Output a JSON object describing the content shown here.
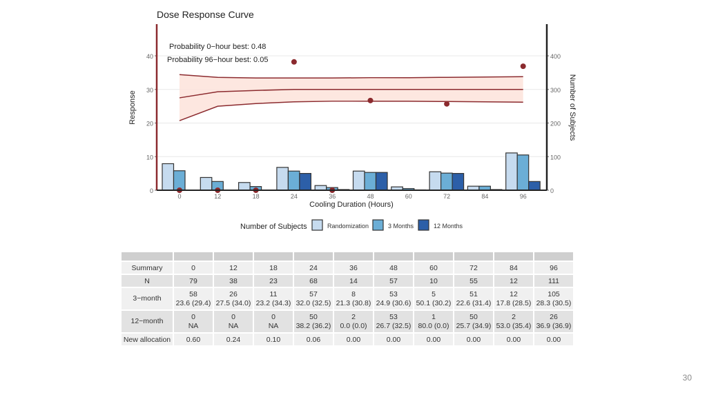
{
  "page_number": "30",
  "chart_data": {
    "type": "bar",
    "title": "Dose Response Curve",
    "xlabel": "Cooling Duration (Hours)",
    "ylabel": "Response",
    "y2label": "Number of Subjects",
    "categories": [
      "0",
      "12",
      "18",
      "24",
      "36",
      "48",
      "60",
      "72",
      "84",
      "96"
    ],
    "ylim": [
      0,
      50
    ],
    "yticks": [
      0,
      10,
      20,
      30,
      40
    ],
    "y2lim": [
      0,
      500
    ],
    "y2ticks": [
      0,
      100,
      200,
      300,
      400
    ],
    "grid": true,
    "annotations": [
      "Probability 0−hour best: 0.48",
      "Probability 96−hour best: 0.05"
    ],
    "legend": {
      "title": "Number of Subjects",
      "placement": "bottom",
      "entries": [
        "Randomization",
        "3 Months",
        "12 Months"
      ]
    },
    "colors": {
      "Randomization": "#c6dbef",
      "3 Months": "#6baed6",
      "12 Months": "#2c5fa8",
      "curve": "#8b2a2e",
      "band": "#fde3da",
      "points": "#8b2a2e",
      "left_axis": "#8b2a2e"
    },
    "series": [
      {
        "name": "Randomization",
        "axis": "y2",
        "values": [
          79,
          38,
          23,
          68,
          14,
          57,
          10,
          55,
          12,
          111
        ]
      },
      {
        "name": "3 Months",
        "axis": "y2",
        "values": [
          58,
          26,
          11,
          57,
          8,
          53,
          5,
          51,
          12,
          105
        ]
      },
      {
        "name": "12 Months",
        "axis": "y2",
        "values": [
          0,
          0,
          0,
          50,
          2,
          53,
          1,
          50,
          2,
          26
        ]
      }
    ],
    "curve": {
      "median": [
        27.5,
        29.3,
        29.7,
        30.0,
        30.0,
        30.0,
        30.0,
        30.0,
        30.0,
        30.0
      ],
      "upper": [
        34.4,
        33.6,
        33.4,
        33.4,
        33.4,
        33.5,
        33.5,
        33.6,
        33.7,
        33.8
      ],
      "lower": [
        20.7,
        25.0,
        25.8,
        26.3,
        26.5,
        26.5,
        26.5,
        26.4,
        26.3,
        26.2
      ]
    },
    "points": [
      {
        "x": "0",
        "y": 0
      },
      {
        "x": "12",
        "y": 0
      },
      {
        "x": "18",
        "y": 0
      },
      {
        "x": "24",
        "y": 38.2
      },
      {
        "x": "36",
        "y": 0
      },
      {
        "x": "48",
        "y": 26.7
      },
      {
        "x": "72",
        "y": 25.7
      },
      {
        "x": "96",
        "y": 36.9
      }
    ]
  },
  "table": {
    "rows": [
      {
        "label": "Summary",
        "cells": [
          "0",
          "12",
          "18",
          "24",
          "36",
          "48",
          "60",
          "72",
          "84",
          "96"
        ]
      },
      {
        "label": "N",
        "cells": [
          "79",
          "38",
          "23",
          "68",
          "14",
          "57",
          "10",
          "55",
          "12",
          "111"
        ]
      },
      {
        "label": "3−month",
        "cells": [
          [
            "58",
            "23.6 (29.4)"
          ],
          [
            "26",
            "27.5 (34.0)"
          ],
          [
            "11",
            "23.2 (34.3)"
          ],
          [
            "57",
            "32.0 (32.5)"
          ],
          [
            "8",
            "21.3 (30.8)"
          ],
          [
            "53",
            "24.9 (30.6)"
          ],
          [
            "5",
            "50.1 (30.2)"
          ],
          [
            "51",
            "22.6 (31.4)"
          ],
          [
            "12",
            "17.8 (28.5)"
          ],
          [
            "105",
            "28.3 (30.5)"
          ]
        ]
      },
      {
        "label": "12−month",
        "cells": [
          [
            "0",
            "NA"
          ],
          [
            "0",
            "NA"
          ],
          [
            "0",
            "NA"
          ],
          [
            "50",
            "38.2 (36.2)"
          ],
          [
            "2",
            "0.0 (0.0)"
          ],
          [
            "53",
            "26.7 (32.5)"
          ],
          [
            "1",
            "80.0 (0.0)"
          ],
          [
            "50",
            "25.7 (34.9)"
          ],
          [
            "2",
            "53.0 (35.4)"
          ],
          [
            "26",
            "36.9 (36.9)"
          ]
        ]
      },
      {
        "label": "New allocation",
        "cells": [
          "0.60",
          "0.24",
          "0.10",
          "0.06",
          "0.00",
          "0.00",
          "0.00",
          "0.00",
          "0.00",
          "0.00"
        ]
      }
    ]
  }
}
